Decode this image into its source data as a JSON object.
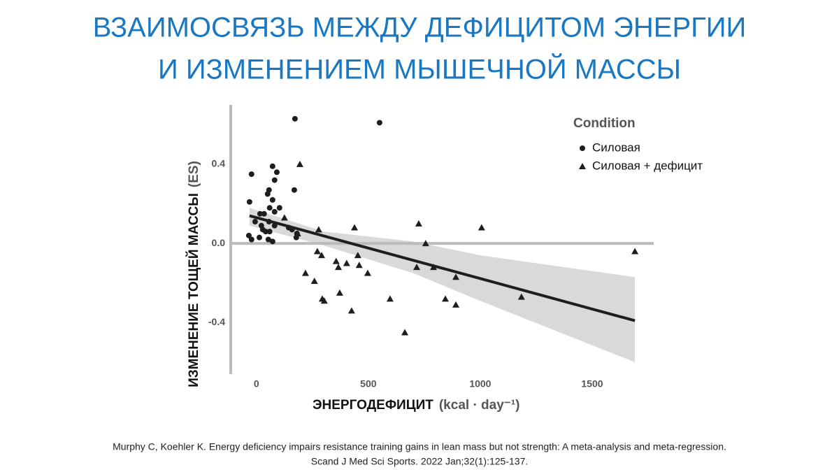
{
  "chart_data": {
    "type": "scatter",
    "title": [
      "ВЗАИМОСВЯЗЬ МЕЖДУ ДЕФИЦИТОМ ЭНЕРГИИ",
      "И ИЗМЕНЕНИЕМ МЫШЕЧНОЙ МАССЫ"
    ],
    "x_label": "ЭНЕРГОДЕФИЦИТ",
    "x_unit": "(kcal · day⁻¹)",
    "y_label": "ИЗМЕНЕНИЕ ТОЩЕЙ МАССЫ",
    "y_unit": "(ES)",
    "legend_title": "Condition",
    "legend_position": "top-right",
    "xlim": [
      -115,
      1775
    ],
    "ylim": [
      -0.66,
      0.7
    ],
    "xticks": [
      0,
      500,
      1000,
      1500
    ],
    "yticks": [
      0.4,
      {
        "value": 0,
        "label": "0.0"
      },
      -0.4
    ],
    "reference_line": 0,
    "series": [
      {
        "name": "Силовая",
        "marker": "circle",
        "color": "#1e1e1e",
        "x": [
          172,
          550,
          -31,
          -22,
          72,
          91,
          81,
          169,
          56,
          50,
          72,
          59,
          103,
          81,
          16,
          34,
          -6,
          22,
          56,
          81,
          28,
          59,
          41,
          -34,
          -22,
          13,
          53,
          72,
          144,
          181,
          178,
          159
        ],
        "values": [
          0.63,
          0.61,
          0.21,
          0.35,
          0.39,
          0.36,
          0.32,
          0.27,
          0.27,
          0.25,
          0.22,
          0.18,
          0.18,
          0.16,
          0.15,
          0.15,
          0.11,
          0.09,
          0.11,
          0.09,
          0.07,
          0.06,
          0.06,
          0.04,
          0.02,
          0.03,
          0.02,
          0.01,
          0.08,
          0.05,
          0.03,
          0.07
        ]
      },
      {
        "name": "Силовая + дефицит",
        "marker": "triangle",
        "color": "#1e1e1e",
        "x": [
          194,
          125,
          278,
          438,
          725,
          756,
          1006,
          1691,
          184,
          272,
          291,
          219,
          259,
          356,
          403,
          366,
          453,
          459,
          497,
          372,
          294,
          303,
          425,
          597,
          663,
          716,
          791,
          891,
          844,
          891,
          1184
        ],
        "values": [
          0.4,
          0.13,
          0.07,
          0.08,
          0.1,
          0.0,
          0.08,
          -0.04,
          0.05,
          -0.04,
          -0.06,
          -0.15,
          -0.19,
          -0.09,
          -0.1,
          -0.12,
          -0.06,
          -0.11,
          -0.15,
          -0.25,
          -0.28,
          -0.29,
          -0.34,
          -0.28,
          -0.45,
          -0.12,
          -0.12,
          -0.17,
          -0.28,
          -0.31,
          -0.27
        ]
      }
    ],
    "fit": {
      "color": "#1e1e1e",
      "x": [
        -31,
        1691
      ],
      "y": [
        0.14,
        -0.39
      ]
    },
    "band": {
      "color": "#d9d9d9",
      "x": [
        -31,
        300,
        700,
        1000,
        1691
      ],
      "upper": [
        0.18,
        0.06,
        0.01,
        -0.06,
        -0.17
      ],
      "lower": [
        0.09,
        -0.01,
        -0.15,
        -0.29,
        -0.6
      ]
    }
  },
  "citation": [
    "Murphy C, Koehler K. Energy deficiency impairs resistance training gains in lean mass but not strength: A meta-analysis and meta-regression.",
    "Scand J Med Sci Sports. 2022 Jan;32(1):125-137."
  ]
}
